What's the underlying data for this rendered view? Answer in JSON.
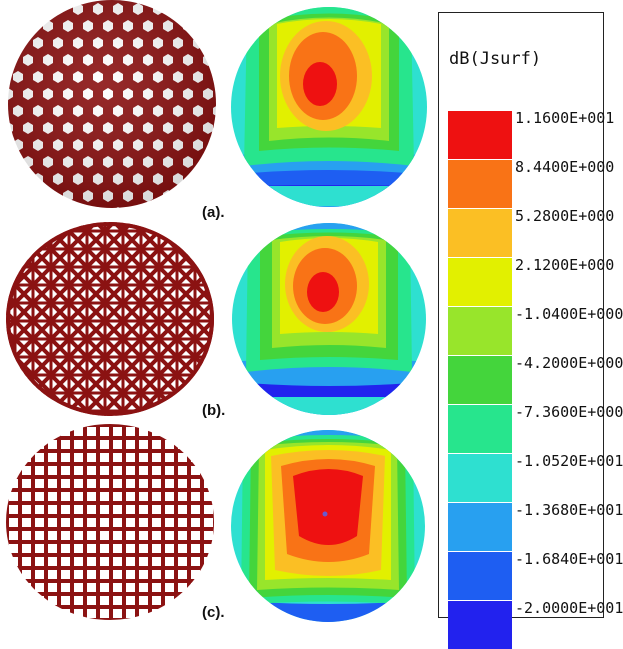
{
  "figure": {
    "panels": [
      {
        "label": "(a).",
        "mesh_pattern": "hexagonal-holes"
      },
      {
        "label": "(b).",
        "mesh_pattern": "diagonal-lattice"
      },
      {
        "label": "(c).",
        "mesh_pattern": "square-grid"
      }
    ]
  },
  "legend": {
    "title": "dB(Jsurf)",
    "entries": [
      {
        "value": "1.1600E+001",
        "color": "#ee1111"
      },
      {
        "value": "8.4400E+000",
        "color": "#f97316"
      },
      {
        "value": "5.2800E+000",
        "color": "#fbbf24"
      },
      {
        "value": "2.1200E+000",
        "color": "#e2f000"
      },
      {
        "value": "-1.0400E+000",
        "color": "#98e52b"
      },
      {
        "value": "-4.2000E+000",
        "color": "#44d53c"
      },
      {
        "value": "-7.3600E+000",
        "color": "#27e58d"
      },
      {
        "value": "-1.0520E+001",
        "color": "#2ee0d0"
      },
      {
        "value": "-1.3680E+001",
        "color": "#28a0f0"
      },
      {
        "value": "-1.6840E+001",
        "color": "#1e5ef2"
      },
      {
        "value": "-2.0000E+001",
        "color": "#2222ee"
      }
    ]
  },
  "colors": {
    "mesh_metal": "#8b1212",
    "mesh_hole": "#ffffff"
  }
}
